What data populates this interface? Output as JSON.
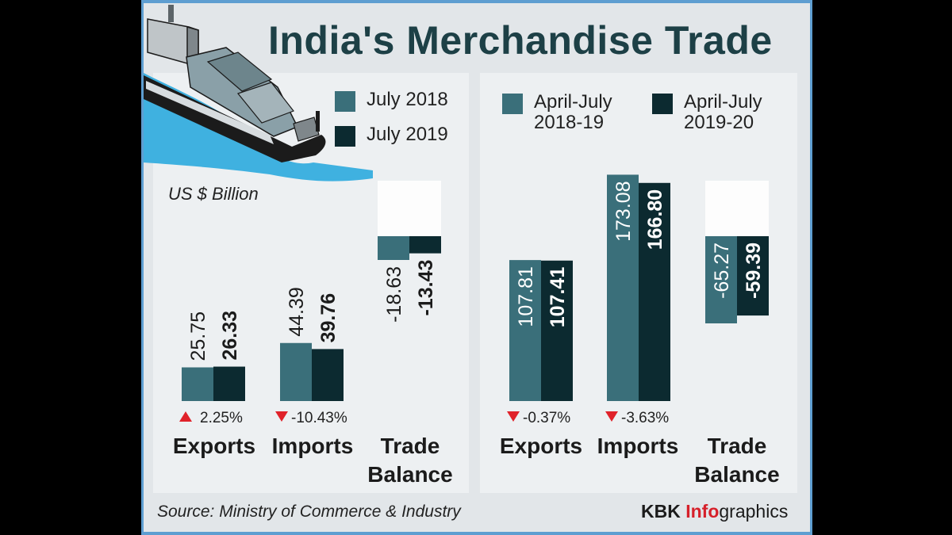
{
  "title": "India's Merchandise Trade",
  "unit": "US $ Billion",
  "source": "Source: Ministry of Commerce & Industry",
  "brand": {
    "part1": "KBK ",
    "part2": "Info",
    "part3": "graphics"
  },
  "colors": {
    "series_prev": "#3a6f7a",
    "series_curr": "#0c2a30",
    "down_arrow": "#e0222a",
    "frame_edge": "#5e9ed1"
  },
  "chart_data": [
    {
      "type": "bar",
      "legend": {
        "prev": "July 2018",
        "curr": "July 2019"
      },
      "categories": [
        "Exports",
        "Imports",
        "Trade Balance"
      ],
      "series": [
        {
          "name": "July 2018",
          "values": [
            25.75,
            44.39,
            -18.63
          ],
          "labels": [
            "25.75",
            "44.39",
            "-18.63"
          ]
        },
        {
          "name": "July 2019",
          "values": [
            26.33,
            39.76,
            -13.43
          ],
          "labels": [
            "26.33",
            "39.76",
            "-13.43"
          ]
        }
      ],
      "changes": [
        {
          "direction": "up",
          "text": "2.25%"
        },
        {
          "direction": "down",
          "text": "-10.43%"
        }
      ]
    },
    {
      "type": "bar",
      "legend": {
        "prev": [
          "April-July",
          "2018-19"
        ],
        "curr": [
          "April-July",
          "2019-20"
        ]
      },
      "categories": [
        "Exports",
        "Imports",
        "Trade Balance"
      ],
      "series": [
        {
          "name": "April-July 2018-19",
          "values": [
            107.81,
            173.08,
            -65.27
          ],
          "labels": [
            "107.81",
            "173.08",
            "-65.27"
          ]
        },
        {
          "name": "April-July 2019-20",
          "values": [
            107.41,
            166.8,
            -59.39
          ],
          "labels": [
            "107.41",
            "166.80",
            "-59.39"
          ]
        }
      ],
      "changes": [
        {
          "direction": "down",
          "text": "-0.37%"
        },
        {
          "direction": "down",
          "text": "-3.63%"
        }
      ]
    }
  ]
}
